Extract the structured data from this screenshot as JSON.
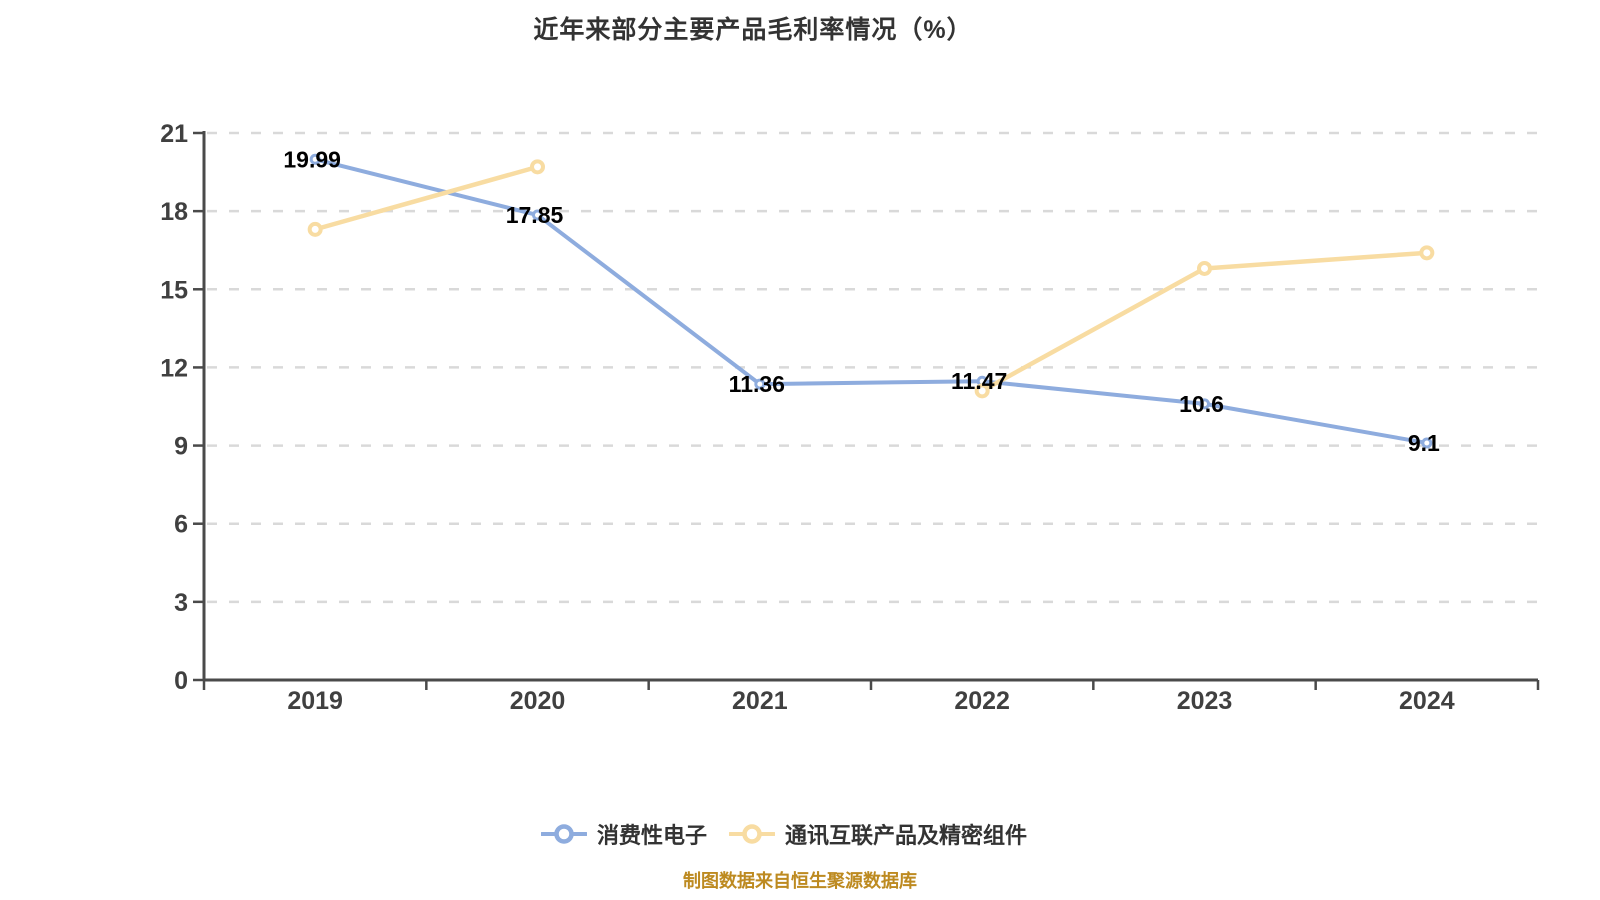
{
  "title": "近年来部分主要产品毛利率情况（%）",
  "footer": "制图数据来自恒生聚源数据库",
  "colors": {
    "background": "#ffffff",
    "axis": "#4a4a4a",
    "gridline": "#d9d9d9",
    "tick_label": "#404040",
    "data_label": "#000000",
    "title_text": "#333333",
    "legend_text": "#333333",
    "footer_text": "#BD8A20",
    "series_blue": "#8EACDE",
    "series_yellow": "#F8DCA2"
  },
  "legend": {
    "items": [
      {
        "label": "消费性电子",
        "color": "#8EACDE"
      },
      {
        "label": "通讯互联产品及精密组件",
        "color": "#F8DCA2"
      }
    ]
  },
  "chart_data": {
    "type": "line",
    "title": "近年来部分主要产品毛利率情况（%）",
    "xlabel": "",
    "ylabel": "",
    "categories": [
      "2019",
      "2020",
      "2021",
      "2022",
      "2023",
      "2024"
    ],
    "series": [
      {
        "name": "消费性电子",
        "color": "#8EACDE",
        "values": [
          19.99,
          17.85,
          11.36,
          11.47,
          10.6,
          9.1
        ],
        "point_labels": [
          "19.99",
          "17.85",
          "11.36",
          "11.47",
          "10.6",
          "9.1"
        ],
        "show_labels": true
      },
      {
        "name": "通讯互联产品及精密组件",
        "color": "#F8DCA2",
        "values": [
          17.3,
          19.7,
          null,
          11.1,
          15.8,
          16.4
        ],
        "point_labels": [],
        "show_labels": false
      }
    ],
    "ylim": [
      0,
      21
    ],
    "yticks": [
      0,
      3,
      6,
      9,
      12,
      15,
      18,
      21
    ],
    "grid": "horizontal-dashed",
    "legend_position": "bottom"
  }
}
